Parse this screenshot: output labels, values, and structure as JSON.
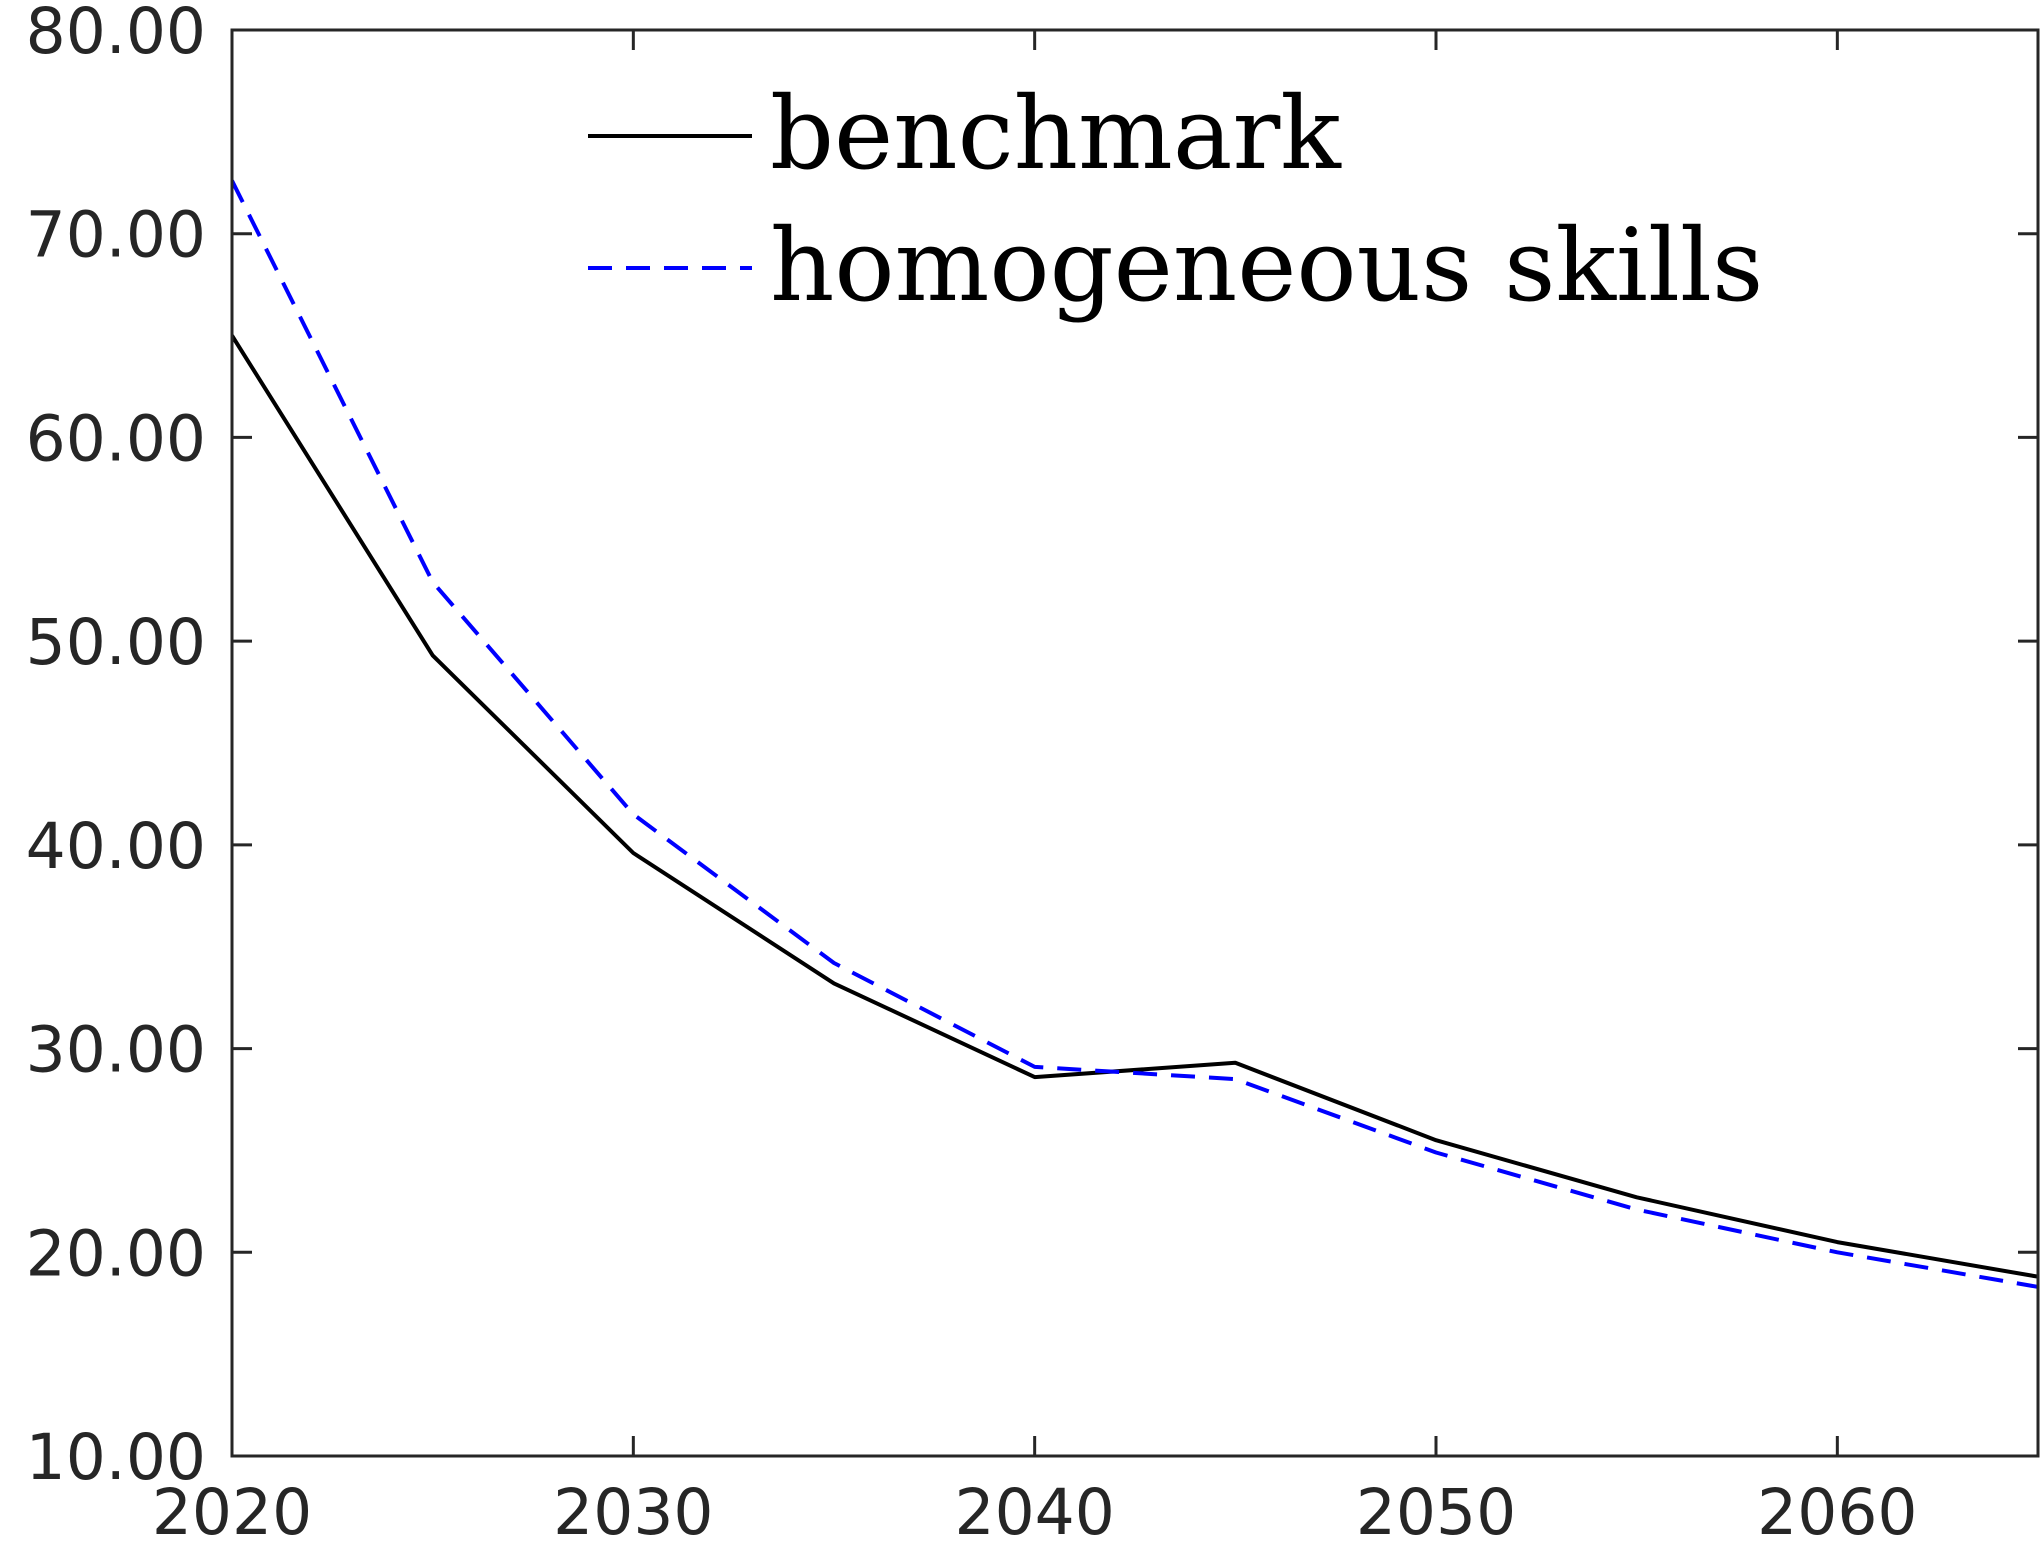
{
  "chart_data": {
    "type": "line",
    "title": "",
    "xlabel": "",
    "ylabel": "",
    "xlim": [
      2020,
      2065
    ],
    "ylim": [
      10,
      80
    ],
    "x_ticks": [
      2020,
      2030,
      2040,
      2050,
      2060
    ],
    "x_tick_labels": [
      "2020",
      "2030",
      "2040",
      "2050",
      "2060"
    ],
    "y_ticks": [
      10,
      20,
      30,
      40,
      50,
      60,
      70,
      80
    ],
    "y_tick_labels": [
      "10.00",
      "20.00",
      "30.00",
      "40.00",
      "50.00",
      "60.00",
      "70.00",
      "80.00"
    ],
    "grid": false,
    "legend_position": "top-center",
    "x": [
      2020,
      2025,
      2030,
      2035,
      2040,
      2045,
      2050,
      2055,
      2060,
      2065
    ],
    "series": [
      {
        "name": "benchmark",
        "color": "#000000",
        "dash": "solid",
        "values": [
          65.0,
          49.3,
          39.6,
          33.2,
          28.6,
          29.3,
          25.5,
          22.7,
          20.5,
          18.8
        ]
      },
      {
        "name": "homogeneous skills",
        "color": "#0000ff",
        "dash": "dashed",
        "values": [
          72.6,
          52.9,
          41.5,
          34.2,
          29.1,
          28.5,
          24.9,
          22.1,
          20.0,
          18.3
        ]
      }
    ]
  }
}
